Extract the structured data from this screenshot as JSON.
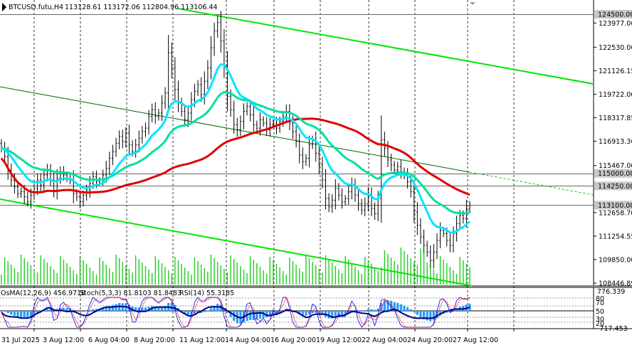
{
  "header": {
    "symbol_text": "BTCUSD.futu,H4",
    "ohlc_text": "113128.61 113172.06 112804.96 113106.44"
  },
  "sub_header": {
    "osma_text": "OsMA(12,26,9) 456.9718",
    "stoch_text": "Stoch(5,3,3) 81.8103 81.8483",
    "rsi_text": "RSI(14) 55.3185"
  },
  "colors": {
    "candle": "#000000",
    "ema_cyan": "#00e5ff",
    "ema_teal": "#00e19f",
    "ma_red": "#e00000",
    "channel_green": "#00e600",
    "trend_dark_green": "#006400",
    "volume": "#22cc22",
    "osma": "#2a9df4",
    "stoch_main": "#0000ff",
    "stoch_signal": "#ff0000",
    "rsi": "#00008b",
    "grid": "#333333"
  },
  "chart_data": {
    "type": "candlestick",
    "price_axis": {
      "min": 108446.89,
      "max": 124500.0,
      "ticks": [
        123977.0,
        122530.0,
        121126.15,
        119722.0,
        118317.85,
        116913.36,
        115467.0,
        112658.7,
        111254.55,
        109850.0,
        108446.89
      ]
    },
    "highlighted_levels": [
      {
        "value": 124500.0,
        "label": "124500.00"
      },
      {
        "value": 115000.0,
        "label": "115000.00"
      },
      {
        "value": 114250.0,
        "label": "114250.00"
      },
      {
        "value": 113100.0,
        "label": "113100.00"
      }
    ],
    "oscillator_axis": {
      "max_label": "776.339",
      "min_label": "-717.453",
      "stoch_levels": [
        "80",
        "70",
        "50",
        "30",
        "20"
      ]
    },
    "x_labels": [
      "31 Jul 2025",
      "3 Aug 12:00",
      "6 Aug 04:00",
      "8 Aug 20:00",
      "11 Aug 12:00",
      "14 Aug 04:00",
      "16 Aug 20:00",
      "19 Aug 12:00",
      "22 Aug 04:00",
      "24 Aug 20:00",
      "27 Aug 12:00"
    ],
    "close_series": [
      116500,
      116000,
      115200,
      114600,
      114200,
      113800,
      113900,
      113600,
      113300,
      113700,
      114100,
      114600,
      114300,
      114900,
      115200,
      114600,
      114000,
      114700,
      115100,
      114900,
      114700,
      114600,
      113800,
      113600,
      113300,
      113700,
      114000,
      114400,
      114800,
      114500,
      114600,
      114900,
      115300,
      115900,
      116300,
      116800,
      117200,
      116900,
      117400,
      116700,
      116300,
      116700,
      117100,
      117500,
      117700,
      118400,
      118800,
      118400,
      118600,
      119200,
      119800,
      122200,
      121300,
      120000,
      119200,
      118700,
      118200,
      118600,
      119400,
      119900,
      120300,
      119700,
      120500,
      121300,
      122500,
      123500,
      124000,
      122900,
      121400,
      119600,
      118800,
      117900,
      117600,
      118100,
      118700,
      119000,
      118500,
      117900,
      117700,
      118200,
      118000,
      117600,
      117900,
      118000,
      117700,
      118100,
      118400,
      118700,
      118000,
      117500,
      116900,
      116100,
      115700,
      115900,
      116700,
      117000,
      116200,
      115500,
      114600,
      113500,
      113000,
      113400,
      114100,
      113700,
      113300,
      113500,
      113900,
      114300,
      113700,
      113200,
      112800,
      113200,
      113700,
      112900,
      112600,
      113500,
      117000,
      116500,
      115800,
      115500,
      115200,
      115400,
      115100,
      114900,
      114500,
      113900,
      112700,
      111900,
      111200,
      110700,
      110300,
      109800,
      110300,
      111000,
      111600,
      111400,
      111000,
      110700,
      111400,
      112000,
      112500,
      112300,
      112900,
      113100
    ]
  },
  "trendlines": {
    "channel_upper_label": "",
    "channel_lower_label": ""
  }
}
